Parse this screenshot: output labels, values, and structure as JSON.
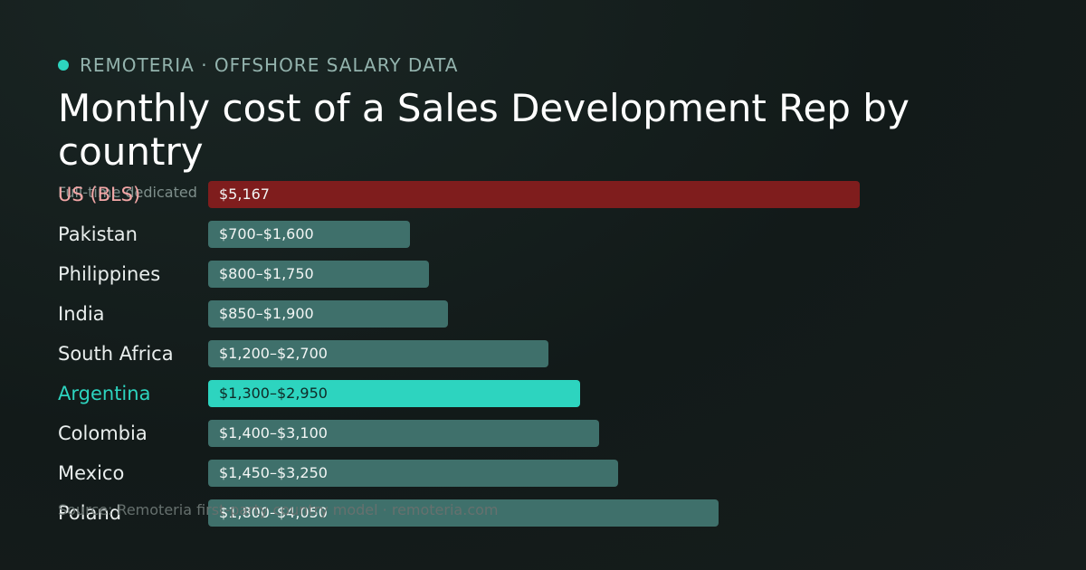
{
  "header": {
    "brand": "REMOTERIA · OFFSHORE SALARY DATA",
    "title": "Monthly cost of a Sales Development Rep by country",
    "subtitle": "Full-time dedicated",
    "source": "Source: Remoteria first-party country model · remoteria.com"
  },
  "colors": {
    "accent": "#2dd4bf",
    "us": "#7f1d1d",
    "us_label": "#f4a7a7",
    "default_bar": "#3f706b",
    "highlight_label": "#2dd4bf"
  },
  "chart_data": {
    "type": "bar",
    "orientation": "horizontal",
    "unit": "USD per month",
    "xlim": [
      0,
      5167
    ],
    "grid": false,
    "legend": "none",
    "rows": [
      {
        "category": "US (BLS)",
        "label": "$5,167",
        "low": 5167,
        "high": 5167,
        "style": "us"
      },
      {
        "category": "Pakistan",
        "label": "$700–$1,600",
        "low": 700,
        "high": 1600,
        "style": "default"
      },
      {
        "category": "Philippines",
        "label": "$800–$1,750",
        "low": 800,
        "high": 1750,
        "style": "default"
      },
      {
        "category": "India",
        "label": "$850–$1,900",
        "low": 850,
        "high": 1900,
        "style": "default"
      },
      {
        "category": "South Africa",
        "label": "$1,200–$2,700",
        "low": 1200,
        "high": 2700,
        "style": "default"
      },
      {
        "category": "Argentina",
        "label": "$1,300–$2,950",
        "low": 1300,
        "high": 2950,
        "style": "highlight"
      },
      {
        "category": "Colombia",
        "label": "$1,400–$3,100",
        "low": 1400,
        "high": 3100,
        "style": "default"
      },
      {
        "category": "Mexico",
        "label": "$1,450–$3,250",
        "low": 1450,
        "high": 3250,
        "style": "default"
      },
      {
        "category": "Poland",
        "label": "$1,800–$4,050",
        "low": 1800,
        "high": 4050,
        "style": "default"
      }
    ]
  }
}
